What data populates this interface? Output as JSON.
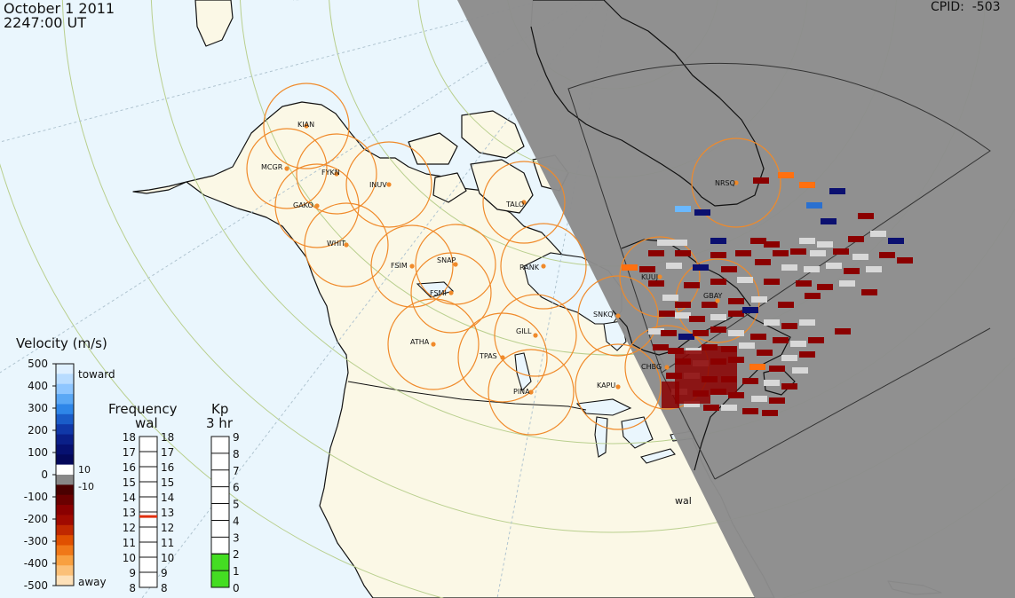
{
  "header": {
    "date": "October 1 2011",
    "time": "2247:00 UT",
    "cpid": "CPID:  -503"
  },
  "colors": {
    "ocean": "#eaf6fd",
    "land": "#fbf8e6",
    "night_shade": "#8c8c8c",
    "fov_circle": "#f08a2a",
    "grid": "#b9cf8e",
    "kp_fill": "#44dd22"
  },
  "stations": [
    {
      "code": "KIAN"
    },
    {
      "code": "MCGR"
    },
    {
      "code": "FYKN"
    },
    {
      "code": "INUV"
    },
    {
      "code": "GAKO"
    },
    {
      "code": "WHIT"
    },
    {
      "code": "FSIM"
    },
    {
      "code": "SNAP"
    },
    {
      "code": "FSMI"
    },
    {
      "code": "RANK"
    },
    {
      "code": "TALO"
    },
    {
      "code": "NRSQ"
    },
    {
      "code": "KUUJ"
    },
    {
      "code": "GBAY"
    },
    {
      "code": "SNKQ"
    },
    {
      "code": "GILL"
    },
    {
      "code": "ATHA"
    },
    {
      "code": "TPAS"
    },
    {
      "code": "CHBG"
    },
    {
      "code": "KAPU"
    },
    {
      "code": "PINA"
    }
  ],
  "radar_label": "wal",
  "velocity_scale": {
    "title": "Velocity (m/s)",
    "labels": [
      "500",
      "400",
      "300",
      "200",
      "100",
      "0",
      "-100",
      "-200",
      "-300",
      "-400",
      "-500"
    ],
    "toward": "toward",
    "away": "away",
    "threshold_pos": "10",
    "threshold_neg": "-10"
  },
  "frequency_scale": {
    "title": "Frequency",
    "subtitle": "wal",
    "left_labels": [
      "18",
      "17",
      "16",
      "15",
      "14",
      "13",
      "12",
      "11",
      "10",
      "9",
      "8"
    ],
    "right_labels": [
      "18",
      "17",
      "16",
      "15",
      "14",
      "13",
      "12",
      "11",
      "10",
      "9",
      "8"
    ],
    "current_mhz": 12.7
  },
  "kp_scale": {
    "title": "Kp",
    "subtitle": "3 hr",
    "labels": [
      "9",
      "8",
      "7",
      "6",
      "5",
      "4",
      "3",
      "2",
      "1",
      "0"
    ],
    "value": 2
  }
}
